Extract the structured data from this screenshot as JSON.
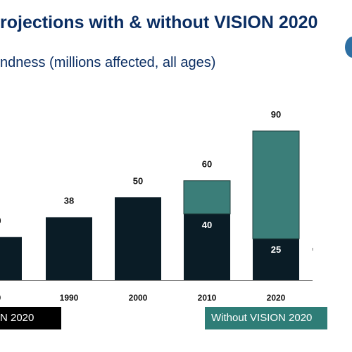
{
  "header": {
    "title": "rojections with & without VISION 2020",
    "subtitle": "ndness (millions affected, all ages)"
  },
  "legend": {
    "with_label": "N 2020",
    "without_label": "Without VISION 2020"
  },
  "colors": {
    "with_vision": "#0a1c26",
    "without_vision": "#3b7e79",
    "title": "#0b2e63"
  },
  "chart_data": {
    "type": "bar",
    "stacked": true,
    "categories": [
      "0",
      "1990",
      "2000",
      "2010",
      "2020"
    ],
    "series": [
      {
        "name": "N 2020",
        "values": [
          null,
          38,
          50,
          40,
          25
        ]
      },
      {
        "name": "Without VISION 2020",
        "values": [
          null,
          null,
          null,
          20,
          65
        ]
      }
    ],
    "partial_visible_values": [
      26
    ],
    "total_labels": [
      "0",
      "38",
      "50",
      "60",
      "90"
    ],
    "inner_labels": [
      "",
      "",
      "",
      "40",
      "25"
    ],
    "ylim": [
      0,
      90
    ],
    "grid": false,
    "legend_position": "bottom"
  }
}
